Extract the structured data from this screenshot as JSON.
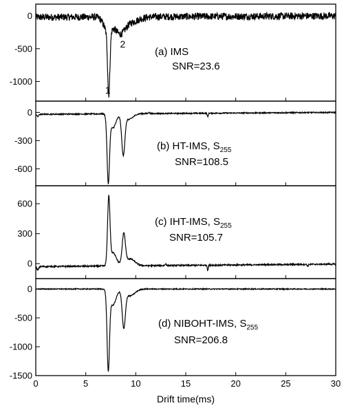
{
  "chart_data": [
    {
      "type": "line",
      "panel": "a",
      "label": "(a) IMS",
      "snr_text": "SNR=23.6",
      "xlim": [
        0,
        30
      ],
      "ylim": [
        -1300,
        180
      ],
      "yticks": [
        0,
        -500,
        -1000
      ],
      "ytick_labels": [
        "0",
        "-500",
        "-1000"
      ],
      "noise": 55,
      "baseline": [
        [
          0,
          -20
        ],
        [
          30,
          0
        ]
      ],
      "peaks": [
        {
          "x": 7.3,
          "amp": -950,
          "w": 0.16
        },
        {
          "x": 7.2,
          "amp": -220,
          "w": 0.55
        },
        {
          "x": 8.4,
          "amp": -220,
          "w": 0.7
        },
        {
          "x": 9.4,
          "amp": -80,
          "w": 1.2
        }
      ],
      "annotations": [
        {
          "text": "1",
          "x": 7.2,
          "y": -1130
        },
        {
          "text": "2",
          "x": 8.7,
          "y": -430
        }
      ]
    },
    {
      "type": "line",
      "panel": "b",
      "label": "(b) HT-IMS, S",
      "label_sub": "255",
      "snr_text": "SNR=108.5",
      "xlim": [
        0,
        30
      ],
      "ylim": [
        -780,
        120
      ],
      "yticks": [
        0,
        -300,
        -600
      ],
      "ytick_labels": [
        "0",
        "-300",
        "-600"
      ],
      "noise": 6,
      "baseline": [
        [
          0,
          -20
        ],
        [
          30,
          0
        ]
      ],
      "peaks": [
        {
          "x": 7.25,
          "amp": -690,
          "w": 0.17
        },
        {
          "x": 7.7,
          "amp": -150,
          "w": 0.45
        },
        {
          "x": 8.75,
          "amp": -420,
          "w": 0.22
        },
        {
          "x": 9.3,
          "amp": -60,
          "w": 0.6
        },
        {
          "x": 0.2,
          "amp": -25,
          "w": 0.12
        },
        {
          "x": 17.2,
          "amp": -40,
          "w": 0.07
        },
        {
          "x": 11.3,
          "amp": 12,
          "w": 0.1
        }
      ],
      "annotations": []
    },
    {
      "type": "line",
      "panel": "c",
      "label": "(c) IHT-IMS, S",
      "label_sub": "255",
      "snr_text": "SNR=105.7",
      "xlim": [
        0,
        30
      ],
      "ylim": [
        -150,
        780
      ],
      "yticks": [
        600,
        300,
        0
      ],
      "ytick_labels": [
        "600",
        "300",
        "0"
      ],
      "noise": 7,
      "baseline": [
        [
          0,
          -30
        ],
        [
          30,
          -5
        ]
      ],
      "peaks": [
        {
          "x": 7.3,
          "amp": 660,
          "w": 0.17
        },
        {
          "x": 7.75,
          "amp": 130,
          "w": 0.45
        },
        {
          "x": 8.8,
          "amp": 300,
          "w": 0.22
        },
        {
          "x": 9.4,
          "amp": 70,
          "w": 0.7
        },
        {
          "x": 0.2,
          "amp": -35,
          "w": 0.12
        },
        {
          "x": 17.2,
          "amp": -50,
          "w": 0.07
        },
        {
          "x": 13.0,
          "amp": 18,
          "w": 0.08
        },
        {
          "x": 27.2,
          "amp": -20,
          "w": 0.08
        }
      ],
      "annotations": []
    },
    {
      "type": "line",
      "panel": "d",
      "label": "(d) NIBOHT-IMS, S",
      "label_sub": "255",
      "snr_text": "SNR=206.8",
      "xlim": [
        0,
        30
      ],
      "ylim": [
        -1500,
        180
      ],
      "yticks": [
        0,
        -500,
        -1000,
        -1500
      ],
      "ytick_labels": [
        "0",
        "-500",
        "-1000",
        "-1500"
      ],
      "noise": 8,
      "baseline": [
        [
          0,
          0
        ],
        [
          30,
          0
        ]
      ],
      "peaks": [
        {
          "x": 7.25,
          "amp": -1330,
          "w": 0.17
        },
        {
          "x": 7.7,
          "amp": -280,
          "w": 0.45
        },
        {
          "x": 8.8,
          "amp": -630,
          "w": 0.22
        },
        {
          "x": 9.4,
          "amp": -120,
          "w": 0.7
        }
      ],
      "annotations": []
    }
  ],
  "xaxis": {
    "label": "Drift time(ms)",
    "ticks": [
      0,
      5,
      10,
      15,
      20,
      25,
      30
    ],
    "tick_labels": [
      "0",
      "5",
      "10",
      "15",
      "20",
      "25",
      "30"
    ]
  },
  "colors": {
    "line": "#000000",
    "frame": "#000000",
    "background": "#ffffff"
  }
}
